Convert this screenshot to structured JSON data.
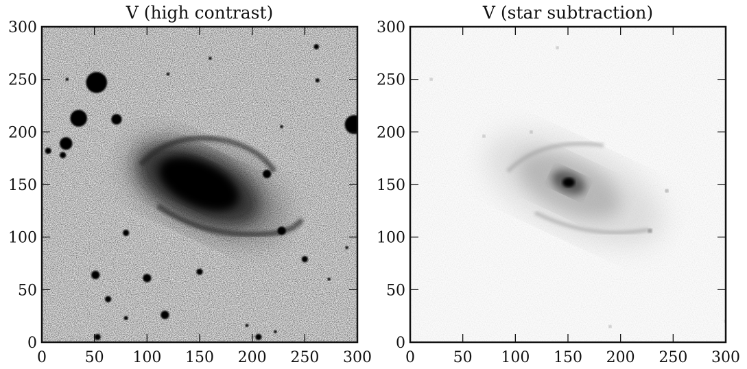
{
  "panels": [
    {
      "title": "V (high contrast)",
      "mode": "high-contrast",
      "x_ticks": [
        "0",
        "50",
        "100",
        "150",
        "200",
        "250",
        "300"
      ],
      "y_ticks": [
        "0",
        "50",
        "100",
        "150",
        "200",
        "250",
        "300"
      ],
      "axis_range": [
        0,
        300
      ],
      "stars": [
        {
          "x": 52,
          "y": 247,
          "r": 10
        },
        {
          "x": 35,
          "y": 213,
          "r": 8
        },
        {
          "x": 71,
          "y": 212,
          "r": 5
        },
        {
          "x": 23,
          "y": 189,
          "r": 6
        },
        {
          "x": 6,
          "y": 182,
          "r": 3
        },
        {
          "x": 20,
          "y": 178,
          "r": 3
        },
        {
          "x": 297,
          "y": 207,
          "r": 9
        },
        {
          "x": 228,
          "y": 106,
          "r": 4
        },
        {
          "x": 214,
          "y": 160,
          "r": 4
        },
        {
          "x": 51,
          "y": 64,
          "r": 4
        },
        {
          "x": 100,
          "y": 61,
          "r": 4
        },
        {
          "x": 63,
          "y": 41,
          "r": 3
        },
        {
          "x": 117,
          "y": 26,
          "r": 4
        },
        {
          "x": 53,
          "y": 5,
          "r": 3
        },
        {
          "x": 206,
          "y": 5,
          "r": 3
        },
        {
          "x": 250,
          "y": 79,
          "r": 3
        },
        {
          "x": 150,
          "y": 67,
          "r": 3
        },
        {
          "x": 80,
          "y": 23,
          "r": 2
        },
        {
          "x": 80,
          "y": 104,
          "r": 3
        },
        {
          "x": 261,
          "y": 281,
          "r": 2.5
        },
        {
          "x": 262,
          "y": 249,
          "r": 2
        },
        {
          "x": 120,
          "y": 255,
          "r": 1.5
        },
        {
          "x": 160,
          "y": 270,
          "r": 1.5
        },
        {
          "x": 24,
          "y": 250,
          "r": 1.5
        },
        {
          "x": 228,
          "y": 205,
          "r": 1.5
        },
        {
          "x": 290,
          "y": 90,
          "r": 1.5
        },
        {
          "x": 195,
          "y": 16,
          "r": 1.5
        },
        {
          "x": 222,
          "y": 10,
          "r": 1.5
        },
        {
          "x": 273,
          "y": 60,
          "r": 1.5
        }
      ]
    },
    {
      "title": "V (star subtraction)",
      "mode": "star-subtraction",
      "x_ticks": [
        "0",
        "50",
        "100",
        "150",
        "200",
        "250",
        "300"
      ],
      "y_ticks": [
        "0",
        "50",
        "100",
        "150",
        "200",
        "250",
        "300"
      ],
      "axis_range": [
        0,
        300
      ],
      "stars": [
        {
          "x": 228,
          "y": 106,
          "r": 2
        },
        {
          "x": 244,
          "y": 144,
          "r": 1.5
        },
        {
          "x": 115,
          "y": 200,
          "r": 1.2
        },
        {
          "x": 140,
          "y": 280,
          "r": 1.2
        },
        {
          "x": 70,
          "y": 196,
          "r": 1.2
        },
        {
          "x": 190,
          "y": 15,
          "r": 1.2
        },
        {
          "x": 20,
          "y": 250,
          "r": 1.2
        },
        {
          "x": 300,
          "y": 20,
          "r": 1.2
        }
      ]
    }
  ],
  "colors": {
    "ink": "#111111",
    "background": "#ffffff",
    "noise_light": "#dcdcdc",
    "noise_heavy": "#f4f4f4"
  }
}
